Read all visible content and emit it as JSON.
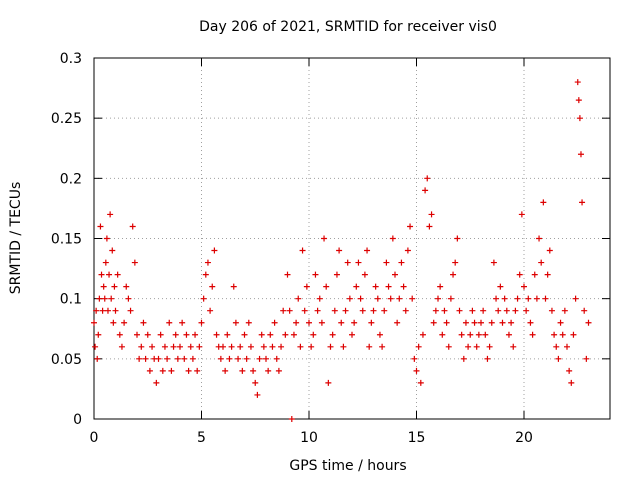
{
  "chart_data": {
    "type": "scatter",
    "title": "Day 206 of 2021, SRMTID for receiver vis0",
    "xlabel": "GPS time / hours",
    "ylabel": "SRMTID / TECUs",
    "xlim": [
      0,
      24
    ],
    "ylim": [
      0,
      0.3
    ],
    "grid": true,
    "marker": "+",
    "xticks": [
      0,
      5,
      10,
      15,
      20
    ],
    "xtick_labels": [
      "0",
      "5",
      "10",
      "15",
      "20"
    ],
    "yticks": [
      0,
      0.05,
      0.1,
      0.15,
      0.2,
      0.25,
      0.3
    ],
    "ytick_labels": [
      "0",
      "0.05",
      "0.1",
      "0.15",
      "0.2",
      "0.25",
      "0.3"
    ],
    "series": [
      {
        "name": "SRMTID",
        "color": "#dd0000",
        "points": [
          [
            0.0,
            0.08
          ],
          [
            0.05,
            0.06
          ],
          [
            0.1,
            0.09
          ],
          [
            0.15,
            0.05
          ],
          [
            0.2,
            0.07
          ],
          [
            0.25,
            0.1
          ],
          [
            0.3,
            0.16
          ],
          [
            0.35,
            0.12
          ],
          [
            0.4,
            0.09
          ],
          [
            0.45,
            0.11
          ],
          [
            0.5,
            0.1
          ],
          [
            0.55,
            0.13
          ],
          [
            0.6,
            0.15
          ],
          [
            0.65,
            0.09
          ],
          [
            0.7,
            0.12
          ],
          [
            0.75,
            0.17
          ],
          [
            0.8,
            0.1
          ],
          [
            0.85,
            0.14
          ],
          [
            0.9,
            0.08
          ],
          [
            0.95,
            0.11
          ],
          [
            1.0,
            0.09
          ],
          [
            1.1,
            0.12
          ],
          [
            1.2,
            0.07
          ],
          [
            1.3,
            0.06
          ],
          [
            1.4,
            0.08
          ],
          [
            1.5,
            0.11
          ],
          [
            1.6,
            0.1
          ],
          [
            1.7,
            0.09
          ],
          [
            1.8,
            0.16
          ],
          [
            1.9,
            0.13
          ],
          [
            2.0,
            0.07
          ],
          [
            2.1,
            0.05
          ],
          [
            2.2,
            0.06
          ],
          [
            2.3,
            0.08
          ],
          [
            2.4,
            0.05
          ],
          [
            2.5,
            0.07
          ],
          [
            2.6,
            0.04
          ],
          [
            2.7,
            0.06
          ],
          [
            2.8,
            0.05
          ],
          [
            2.9,
            0.03
          ],
          [
            3.0,
            0.05
          ],
          [
            3.1,
            0.07
          ],
          [
            3.2,
            0.04
          ],
          [
            3.3,
            0.06
          ],
          [
            3.4,
            0.05
          ],
          [
            3.5,
            0.08
          ],
          [
            3.6,
            0.04
          ],
          [
            3.7,
            0.06
          ],
          [
            3.8,
            0.07
          ],
          [
            3.9,
            0.05
          ],
          [
            4.0,
            0.06
          ],
          [
            4.1,
            0.08
          ],
          [
            4.2,
            0.05
          ],
          [
            4.3,
            0.07
          ],
          [
            4.4,
            0.04
          ],
          [
            4.5,
            0.06
          ],
          [
            4.6,
            0.05
          ],
          [
            4.7,
            0.07
          ],
          [
            4.8,
            0.04
          ],
          [
            4.9,
            0.06
          ],
          [
            5.0,
            0.08
          ],
          [
            5.1,
            0.1
          ],
          [
            5.2,
            0.12
          ],
          [
            5.3,
            0.13
          ],
          [
            5.4,
            0.09
          ],
          [
            5.5,
            0.11
          ],
          [
            5.6,
            0.14
          ],
          [
            5.7,
            0.07
          ],
          [
            5.8,
            0.06
          ],
          [
            5.9,
            0.05
          ],
          [
            6.0,
            0.06
          ],
          [
            6.1,
            0.04
          ],
          [
            6.2,
            0.07
          ],
          [
            6.3,
            0.05
          ],
          [
            6.4,
            0.06
          ],
          [
            6.5,
            0.11
          ],
          [
            6.6,
            0.08
          ],
          [
            6.7,
            0.05
          ],
          [
            6.8,
            0.06
          ],
          [
            6.9,
            0.04
          ],
          [
            7.0,
            0.07
          ],
          [
            7.1,
            0.05
          ],
          [
            7.2,
            0.08
          ],
          [
            7.3,
            0.06
          ],
          [
            7.4,
            0.04
          ],
          [
            7.5,
            0.03
          ],
          [
            7.6,
            0.02
          ],
          [
            7.7,
            0.05
          ],
          [
            7.8,
            0.07
          ],
          [
            7.9,
            0.06
          ],
          [
            8.0,
            0.05
          ],
          [
            8.1,
            0.04
          ],
          [
            8.2,
            0.07
          ],
          [
            8.3,
            0.06
          ],
          [
            8.4,
            0.08
          ],
          [
            8.5,
            0.05
          ],
          [
            8.6,
            0.04
          ],
          [
            8.7,
            0.06
          ],
          [
            8.8,
            0.09
          ],
          [
            8.9,
            0.07
          ],
          [
            9.0,
            0.12
          ],
          [
            9.1,
            0.09
          ],
          [
            9.2,
            0.0
          ],
          [
            9.3,
            0.07
          ],
          [
            9.4,
            0.08
          ],
          [
            9.5,
            0.1
          ],
          [
            9.6,
            0.06
          ],
          [
            9.7,
            0.14
          ],
          [
            9.8,
            0.09
          ],
          [
            9.9,
            0.11
          ],
          [
            10.0,
            0.08
          ],
          [
            10.1,
            0.06
          ],
          [
            10.2,
            0.07
          ],
          [
            10.3,
            0.12
          ],
          [
            10.4,
            0.09
          ],
          [
            10.5,
            0.1
          ],
          [
            10.6,
            0.08
          ],
          [
            10.7,
            0.15
          ],
          [
            10.8,
            0.11
          ],
          [
            10.9,
            0.03
          ],
          [
            11.0,
            0.06
          ],
          [
            11.1,
            0.07
          ],
          [
            11.2,
            0.09
          ],
          [
            11.3,
            0.12
          ],
          [
            11.4,
            0.14
          ],
          [
            11.5,
            0.08
          ],
          [
            11.6,
            0.06
          ],
          [
            11.7,
            0.09
          ],
          [
            11.8,
            0.13
          ],
          [
            11.9,
            0.1
          ],
          [
            12.0,
            0.07
          ],
          [
            12.1,
            0.08
          ],
          [
            12.2,
            0.11
          ],
          [
            12.3,
            0.13
          ],
          [
            12.4,
            0.1
          ],
          [
            12.5,
            0.09
          ],
          [
            12.6,
            0.12
          ],
          [
            12.7,
            0.14
          ],
          [
            12.8,
            0.06
          ],
          [
            12.9,
            0.08
          ],
          [
            13.0,
            0.09
          ],
          [
            13.1,
            0.11
          ],
          [
            13.2,
            0.1
          ],
          [
            13.3,
            0.07
          ],
          [
            13.4,
            0.06
          ],
          [
            13.5,
            0.09
          ],
          [
            13.6,
            0.13
          ],
          [
            13.7,
            0.11
          ],
          [
            13.8,
            0.1
          ],
          [
            13.9,
            0.15
          ],
          [
            14.0,
            0.12
          ],
          [
            14.1,
            0.08
          ],
          [
            14.2,
            0.1
          ],
          [
            14.3,
            0.13
          ],
          [
            14.4,
            0.11
          ],
          [
            14.5,
            0.09
          ],
          [
            14.6,
            0.14
          ],
          [
            14.7,
            0.16
          ],
          [
            14.8,
            0.1
          ],
          [
            14.9,
            0.05
          ],
          [
            15.0,
            0.04
          ],
          [
            15.1,
            0.06
          ],
          [
            15.2,
            0.03
          ],
          [
            15.3,
            0.07
          ],
          [
            15.4,
            0.19
          ],
          [
            15.5,
            0.2
          ],
          [
            15.6,
            0.16
          ],
          [
            15.7,
            0.17
          ],
          [
            15.8,
            0.08
          ],
          [
            15.9,
            0.09
          ],
          [
            16.0,
            0.1
          ],
          [
            16.1,
            0.11
          ],
          [
            16.2,
            0.07
          ],
          [
            16.3,
            0.09
          ],
          [
            16.4,
            0.08
          ],
          [
            16.5,
            0.06
          ],
          [
            16.6,
            0.1
          ],
          [
            16.7,
            0.12
          ],
          [
            16.8,
            0.13
          ],
          [
            16.9,
            0.15
          ],
          [
            17.0,
            0.09
          ],
          [
            17.1,
            0.07
          ],
          [
            17.2,
            0.05
          ],
          [
            17.3,
            0.08
          ],
          [
            17.4,
            0.06
          ],
          [
            17.5,
            0.07
          ],
          [
            17.6,
            0.09
          ],
          [
            17.7,
            0.08
          ],
          [
            17.8,
            0.06
          ],
          [
            17.9,
            0.07
          ],
          [
            18.0,
            0.08
          ],
          [
            18.1,
            0.09
          ],
          [
            18.2,
            0.07
          ],
          [
            18.3,
            0.05
          ],
          [
            18.4,
            0.06
          ],
          [
            18.5,
            0.08
          ],
          [
            18.6,
            0.13
          ],
          [
            18.7,
            0.1
          ],
          [
            18.8,
            0.09
          ],
          [
            18.9,
            0.11
          ],
          [
            19.0,
            0.08
          ],
          [
            19.1,
            0.1
          ],
          [
            19.2,
            0.09
          ],
          [
            19.3,
            0.07
          ],
          [
            19.4,
            0.08
          ],
          [
            19.5,
            0.06
          ],
          [
            19.6,
            0.09
          ],
          [
            19.7,
            0.1
          ],
          [
            19.8,
            0.12
          ],
          [
            19.9,
            0.17
          ],
          [
            20.0,
            0.11
          ],
          [
            20.1,
            0.09
          ],
          [
            20.2,
            0.1
          ],
          [
            20.3,
            0.08
          ],
          [
            20.4,
            0.07
          ],
          [
            20.5,
            0.12
          ],
          [
            20.6,
            0.1
          ],
          [
            20.7,
            0.15
          ],
          [
            20.8,
            0.13
          ],
          [
            20.9,
            0.18
          ],
          [
            21.0,
            0.1
          ],
          [
            21.1,
            0.12
          ],
          [
            21.2,
            0.14
          ],
          [
            21.3,
            0.09
          ],
          [
            21.4,
            0.07
          ],
          [
            21.5,
            0.06
          ],
          [
            21.6,
            0.05
          ],
          [
            21.7,
            0.08
          ],
          [
            21.8,
            0.07
          ],
          [
            21.9,
            0.09
          ],
          [
            22.0,
            0.06
          ],
          [
            22.1,
            0.04
          ],
          [
            22.2,
            0.03
          ],
          [
            22.3,
            0.07
          ],
          [
            22.4,
            0.1
          ],
          [
            22.5,
            0.28
          ],
          [
            22.55,
            0.265
          ],
          [
            22.6,
            0.25
          ],
          [
            22.65,
            0.22
          ],
          [
            22.7,
            0.18
          ],
          [
            22.8,
            0.09
          ],
          [
            22.9,
            0.05
          ],
          [
            23.0,
            0.08
          ]
        ]
      }
    ]
  }
}
